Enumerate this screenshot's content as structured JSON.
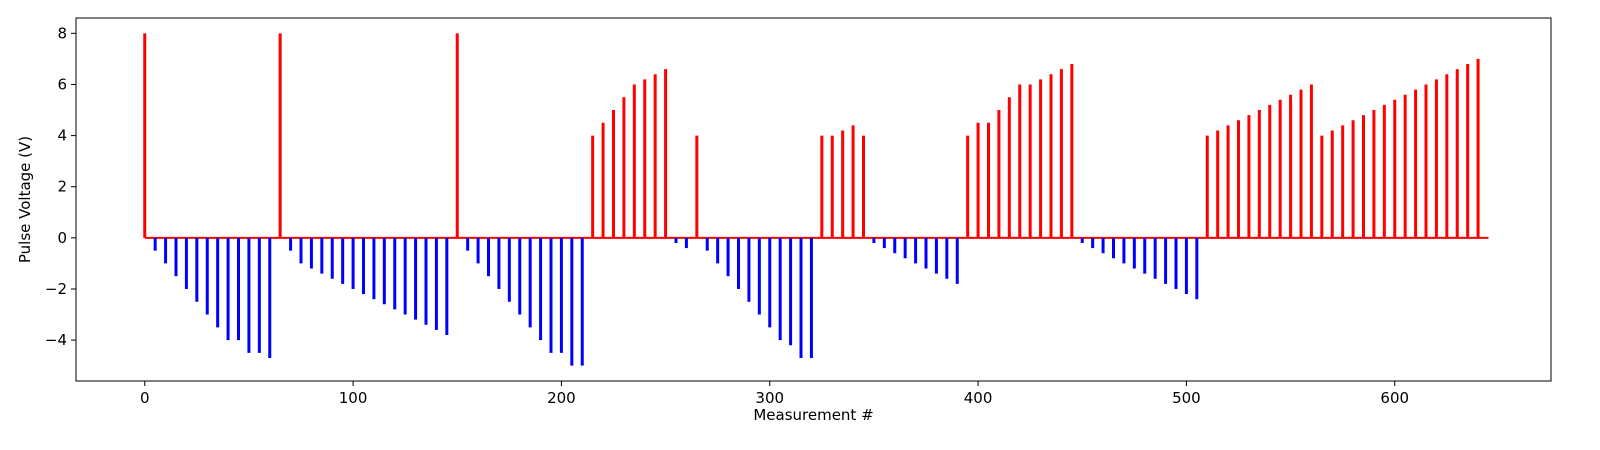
{
  "chart_data": {
    "type": "bar",
    "xlabel": "Measurement #",
    "ylabel": "Pulse Voltage (V)",
    "xlim": [
      -33,
      675
    ],
    "ylim": [
      -5.6,
      8.6
    ],
    "xticks": [
      0,
      100,
      200,
      300,
      400,
      500,
      600
    ],
    "yticks": [
      -4,
      -2,
      0,
      2,
      4,
      6,
      8
    ],
    "colors": {
      "positive": "#ff0000",
      "negative": "#0000ff",
      "frame": "#000000"
    },
    "baseline": {
      "value": 0,
      "x_from": 0,
      "x_to": 645,
      "color": "#ff0000"
    },
    "positive_pulses": [
      {
        "x": 0,
        "v": 8
      },
      {
        "x": 65,
        "v": 8
      },
      {
        "x": 150,
        "v": 8
      },
      {
        "x": 215,
        "v": 4
      },
      {
        "x": 220,
        "v": 4.5
      },
      {
        "x": 225,
        "v": 5
      },
      {
        "x": 230,
        "v": 5.5
      },
      {
        "x": 235,
        "v": 6
      },
      {
        "x": 240,
        "v": 6.2
      },
      {
        "x": 245,
        "v": 6.4
      },
      {
        "x": 250,
        "v": 6.6
      },
      {
        "x": 265,
        "v": 4
      },
      {
        "x": 325,
        "v": 4
      },
      {
        "x": 330,
        "v": 4
      },
      {
        "x": 335,
        "v": 4.2
      },
      {
        "x": 340,
        "v": 4.4
      },
      {
        "x": 345,
        "v": 4
      },
      {
        "x": 395,
        "v": 4
      },
      {
        "x": 400,
        "v": 4.5
      },
      {
        "x": 405,
        "v": 4.5
      },
      {
        "x": 410,
        "v": 5
      },
      {
        "x": 415,
        "v": 5.5
      },
      {
        "x": 420,
        "v": 6
      },
      {
        "x": 425,
        "v": 6
      },
      {
        "x": 430,
        "v": 6.2
      },
      {
        "x": 435,
        "v": 6.4
      },
      {
        "x": 440,
        "v": 6.6
      },
      {
        "x": 445,
        "v": 6.8
      },
      {
        "x": 510,
        "v": 4
      },
      {
        "x": 515,
        "v": 4.2
      },
      {
        "x": 520,
        "v": 4.4
      },
      {
        "x": 525,
        "v": 4.6
      },
      {
        "x": 530,
        "v": 4.8
      },
      {
        "x": 535,
        "v": 5
      },
      {
        "x": 540,
        "v": 5.2
      },
      {
        "x": 545,
        "v": 5.4
      },
      {
        "x": 550,
        "v": 5.6
      },
      {
        "x": 555,
        "v": 5.8
      },
      {
        "x": 560,
        "v": 6
      },
      {
        "x": 565,
        "v": 4
      },
      {
        "x": 570,
        "v": 4.2
      },
      {
        "x": 575,
        "v": 4.4
      },
      {
        "x": 580,
        "v": 4.6
      },
      {
        "x": 585,
        "v": 4.8
      },
      {
        "x": 590,
        "v": 5
      },
      {
        "x": 595,
        "v": 5.2
      },
      {
        "x": 600,
        "v": 5.4
      },
      {
        "x": 605,
        "v": 5.6
      },
      {
        "x": 610,
        "v": 5.8
      },
      {
        "x": 615,
        "v": 6
      },
      {
        "x": 620,
        "v": 6.2
      },
      {
        "x": 625,
        "v": 6.4
      },
      {
        "x": 630,
        "v": 6.6
      },
      {
        "x": 635,
        "v": 6.8
      },
      {
        "x": 640,
        "v": 7
      }
    ],
    "negative_pulses": [
      {
        "x": 5,
        "v": -0.5
      },
      {
        "x": 10,
        "v": -1
      },
      {
        "x": 15,
        "v": -1.5
      },
      {
        "x": 20,
        "v": -2
      },
      {
        "x": 25,
        "v": -2.5
      },
      {
        "x": 30,
        "v": -3
      },
      {
        "x": 35,
        "v": -3.5
      },
      {
        "x": 40,
        "v": -4
      },
      {
        "x": 45,
        "v": -4
      },
      {
        "x": 50,
        "v": -4.5
      },
      {
        "x": 55,
        "v": -4.5
      },
      {
        "x": 60,
        "v": -4.7
      },
      {
        "x": 70,
        "v": -0.5
      },
      {
        "x": 75,
        "v": -1
      },
      {
        "x": 80,
        "v": -1.2
      },
      {
        "x": 85,
        "v": -1.4
      },
      {
        "x": 90,
        "v": -1.6
      },
      {
        "x": 95,
        "v": -1.8
      },
      {
        "x": 100,
        "v": -2
      },
      {
        "x": 105,
        "v": -2.2
      },
      {
        "x": 110,
        "v": -2.4
      },
      {
        "x": 115,
        "v": -2.6
      },
      {
        "x": 120,
        "v": -2.8
      },
      {
        "x": 125,
        "v": -3
      },
      {
        "x": 130,
        "v": -3.2
      },
      {
        "x": 135,
        "v": -3.4
      },
      {
        "x": 140,
        "v": -3.6
      },
      {
        "x": 145,
        "v": -3.8
      },
      {
        "x": 155,
        "v": -0.5
      },
      {
        "x": 160,
        "v": -1
      },
      {
        "x": 165,
        "v": -1.5
      },
      {
        "x": 170,
        "v": -2
      },
      {
        "x": 175,
        "v": -2.5
      },
      {
        "x": 180,
        "v": -3
      },
      {
        "x": 185,
        "v": -3.5
      },
      {
        "x": 190,
        "v": -4
      },
      {
        "x": 195,
        "v": -4.5
      },
      {
        "x": 200,
        "v": -4.5
      },
      {
        "x": 205,
        "v": -5
      },
      {
        "x": 210,
        "v": -5
      },
      {
        "x": 255,
        "v": -0.2
      },
      {
        "x": 260,
        "v": -0.4
      },
      {
        "x": 270,
        "v": -0.5
      },
      {
        "x": 275,
        "v": -1
      },
      {
        "x": 280,
        "v": -1.5
      },
      {
        "x": 285,
        "v": -2
      },
      {
        "x": 290,
        "v": -2.5
      },
      {
        "x": 295,
        "v": -3
      },
      {
        "x": 300,
        "v": -3.5
      },
      {
        "x": 305,
        "v": -4
      },
      {
        "x": 310,
        "v": -4.2
      },
      {
        "x": 315,
        "v": -4.7
      },
      {
        "x": 320,
        "v": -4.7
      },
      {
        "x": 350,
        "v": -0.2
      },
      {
        "x": 355,
        "v": -0.4
      },
      {
        "x": 360,
        "v": -0.6
      },
      {
        "x": 365,
        "v": -0.8
      },
      {
        "x": 370,
        "v": -1
      },
      {
        "x": 375,
        "v": -1.2
      },
      {
        "x": 380,
        "v": -1.4
      },
      {
        "x": 385,
        "v": -1.6
      },
      {
        "x": 390,
        "v": -1.8
      },
      {
        "x": 450,
        "v": -0.2
      },
      {
        "x": 455,
        "v": -0.4
      },
      {
        "x": 460,
        "v": -0.6
      },
      {
        "x": 465,
        "v": -0.8
      },
      {
        "x": 470,
        "v": -1
      },
      {
        "x": 475,
        "v": -1.2
      },
      {
        "x": 480,
        "v": -1.4
      },
      {
        "x": 485,
        "v": -1.6
      },
      {
        "x": 490,
        "v": -1.8
      },
      {
        "x": 495,
        "v": -2
      },
      {
        "x": 500,
        "v": -2.2
      },
      {
        "x": 505,
        "v": -2.4
      }
    ]
  }
}
